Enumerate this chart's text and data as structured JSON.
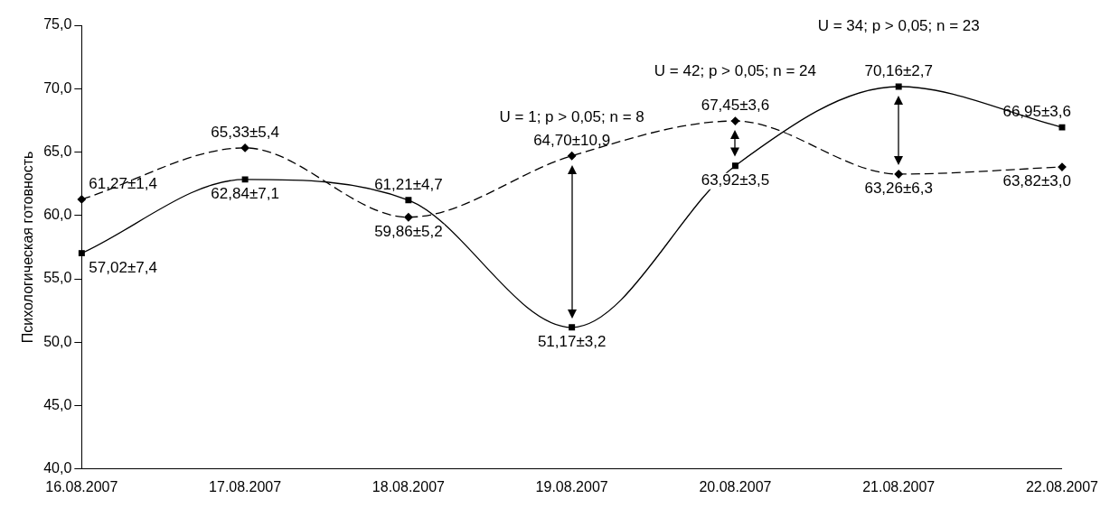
{
  "chart_data": {
    "type": "line",
    "ylabel": "Психологическая готовность",
    "categories": [
      "16.08.2007",
      "17.08.2007",
      "18.08.2007",
      "19.08.2007",
      "20.08.2007",
      "21.08.2007",
      "22.08.2007"
    ],
    "series": [
      {
        "color": "#000000",
        "line_style": "solid",
        "marker": "square",
        "values": [
          57.02,
          62.84,
          61.21,
          51.17,
          63.92,
          70.16,
          66.95
        ],
        "value_labels": [
          "57,02±7,4",
          "62,84±7,1",
          "61,21±4,7",
          "51,17±3,2",
          "63,92±3,5",
          "70,16±2,7",
          "66,95±3,6"
        ]
      },
      {
        "color": "#000000",
        "line_style": "dashed",
        "marker": "diamond",
        "values": [
          61.27,
          65.33,
          59.86,
          64.7,
          67.45,
          63.26,
          63.82
        ],
        "value_labels": [
          "61,27±1,4",
          "65,33±5,4",
          "59,86±5,2",
          "64,70±10,9",
          "67,45±3,6",
          "63,26±6,3",
          "63,82±3,0"
        ]
      }
    ],
    "ylim": [
      40,
      75
    ],
    "yticks": [
      {
        "value": 40,
        "label": "40,0"
      },
      {
        "value": 45,
        "label": "45,0"
      },
      {
        "value": 50,
        "label": "50,0"
      },
      {
        "value": 55,
        "label": "55,0"
      },
      {
        "value": 60,
        "label": "60,0"
      },
      {
        "value": 65,
        "label": "65,0"
      },
      {
        "value": 70,
        "label": "70,0"
      },
      {
        "value": 75,
        "label": "75,0"
      }
    ],
    "grid": false,
    "legend": false,
    "annotations": [
      "U = 1; p > 0,05; n = 8",
      "U = 42; p > 0,05; n = 24",
      "U = 34; p > 0,05; n = 23"
    ]
  }
}
